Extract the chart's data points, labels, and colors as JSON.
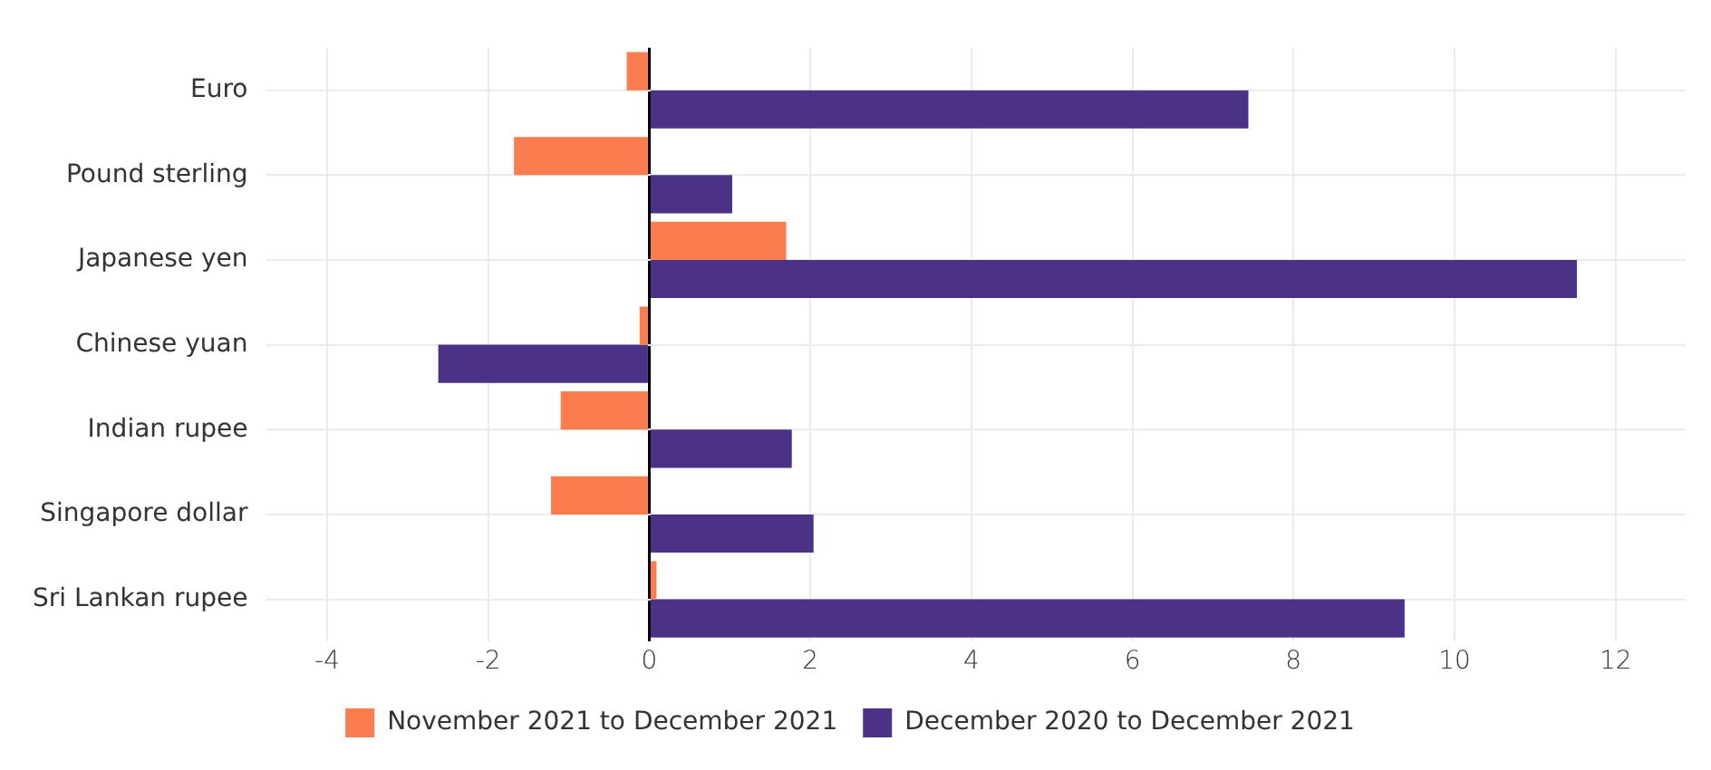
{
  "chart_data": {
    "type": "bar",
    "orientation": "horizontal",
    "categories": [
      "Euro",
      "Pound sterling",
      "Japanese yen",
      "Chinese yuan",
      "Indian rupee",
      "Singapore dollar",
      "Sri Lankan rupee"
    ],
    "series": [
      {
        "name": "November 2021 to December 2021",
        "color": "#fa7c4f",
        "values": [
          -0.28,
          -1.68,
          1.7,
          -0.12,
          -1.1,
          -1.22,
          0.09
        ]
      },
      {
        "name": "December 2020 to December 2021",
        "color": "#4b3286",
        "values": [
          7.44,
          1.03,
          11.52,
          -2.62,
          1.77,
          2.04,
          9.38
        ]
      }
    ],
    "xlim": [
      -4.76,
      12.87
    ],
    "xticks": [
      -4,
      -2,
      0,
      2,
      4,
      6,
      8,
      10,
      12
    ],
    "grid": true,
    "legend": "bottom"
  }
}
